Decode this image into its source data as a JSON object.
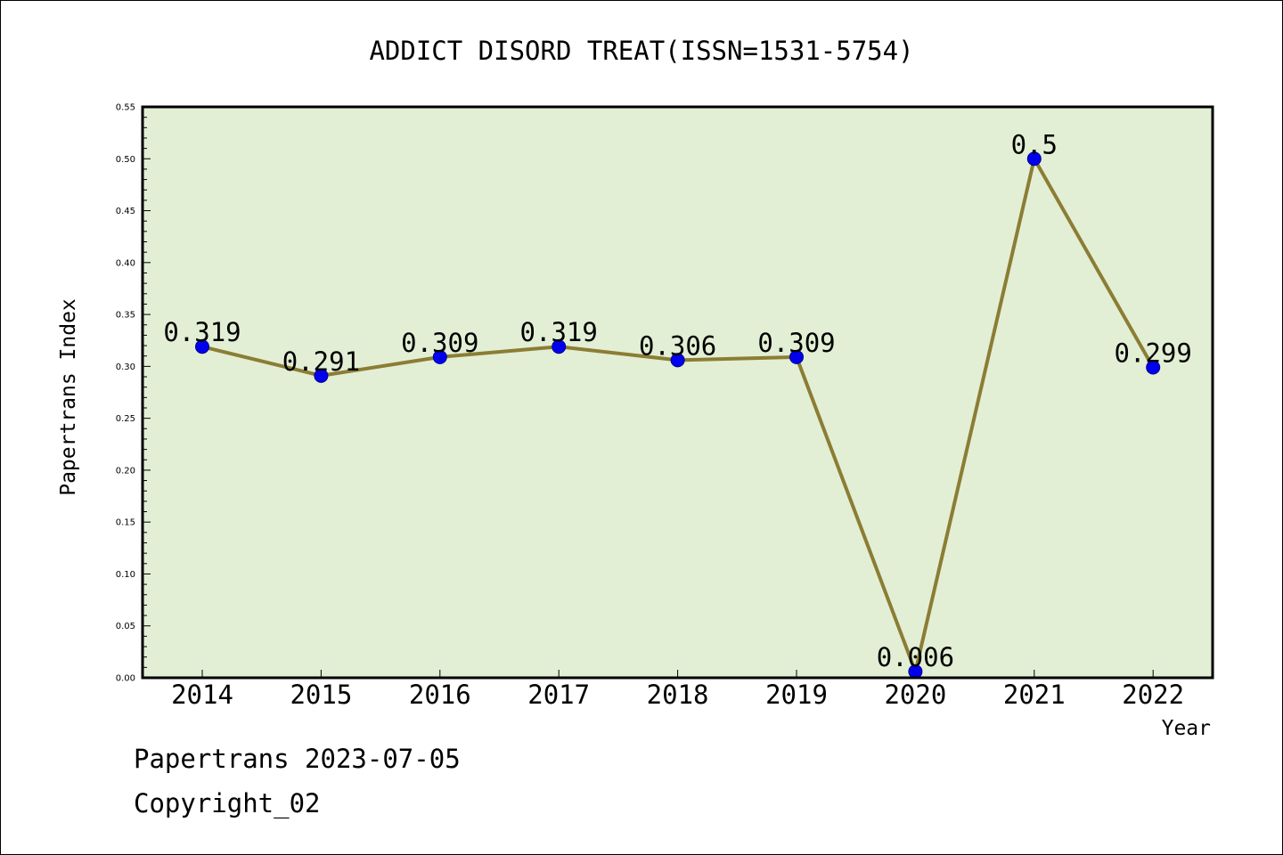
{
  "chart_data": {
    "type": "line",
    "title": "ADDICT DISORD TREAT(ISSN=1531-5754)",
    "xlabel": "Year",
    "ylabel": "Papertrans Index",
    "categories": [
      "2014",
      "2015",
      "2016",
      "2017",
      "2018",
      "2019",
      "2020",
      "2021",
      "2022"
    ],
    "values": [
      0.319,
      0.291,
      0.309,
      0.319,
      0.306,
      0.309,
      0.006,
      0.5,
      0.299
    ],
    "value_labels": [
      "0.319",
      "0.291",
      "0.309",
      "0.319",
      "0.306",
      "0.309",
      "0.006",
      "0.5",
      "0.299"
    ],
    "ylim": [
      0,
      0.55
    ],
    "yticks": [
      "0.00",
      "0.05",
      "0.10",
      "0.15",
      "0.20",
      "0.25",
      "0.30",
      "0.35",
      "0.40",
      "0.45",
      "0.50",
      "0.55"
    ],
    "grid": false,
    "colors": {
      "plot_background": "#e2efd5",
      "line": "#8b7d34",
      "marker": "#0000ee"
    }
  },
  "footer": {
    "line1": "Papertrans 2023-07-05",
    "line2": "Copyright_02"
  }
}
